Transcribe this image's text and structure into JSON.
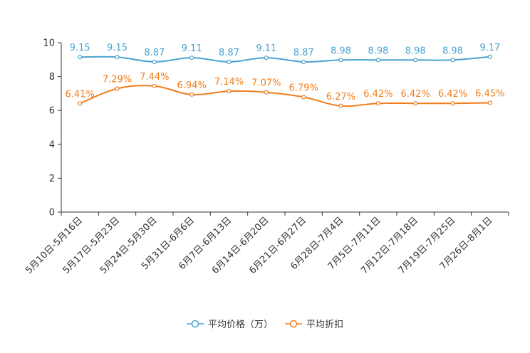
{
  "chart_data": {
    "type": "line",
    "title": "",
    "xlabel": "",
    "ylabel": "",
    "ylim": [
      0,
      10
    ],
    "yticks": [
      0,
      2,
      4,
      6,
      8,
      10
    ],
    "grid": false,
    "legend_position": "bottom-center",
    "categories": [
      "5月10日-5月16日",
      "5月17日-5月23日",
      "5月24日-5月30日",
      "5月31日-6月6日",
      "6月7日-6月13日",
      "6月14日-6月20日",
      "6月21日-6月27日",
      "6月28日-7月4日",
      "7月5日-7月11日",
      "7月12日-7月18日",
      "7月19日-7月25日",
      "7月26日-8月1日"
    ],
    "series": [
      {
        "name": "平均价格（万）",
        "color": "#4aa3cf",
        "values": [
          9.15,
          9.15,
          8.87,
          9.11,
          8.87,
          9.11,
          8.87,
          8.98,
          8.98,
          8.98,
          8.98,
          9.17
        ],
        "labels": [
          "9.15",
          "9.15",
          "8.87",
          "9.11",
          "8.87",
          "9.11",
          "8.87",
          "8.98",
          "8.98",
          "8.98",
          "8.98",
          "9.17"
        ]
      },
      {
        "name": "平均折扣",
        "color": "#f07d1c",
        "values": [
          6.41,
          7.29,
          7.44,
          6.94,
          7.14,
          7.07,
          6.79,
          6.27,
          6.42,
          6.42,
          6.42,
          6.45
        ],
        "labels": [
          "6.41%",
          "7.29%",
          "7.44%",
          "6.94%",
          "7.14%",
          "7.07%",
          "6.79%",
          "6.27%",
          "6.42%",
          "6.42%",
          "6.42%",
          "6.45%"
        ]
      }
    ]
  }
}
